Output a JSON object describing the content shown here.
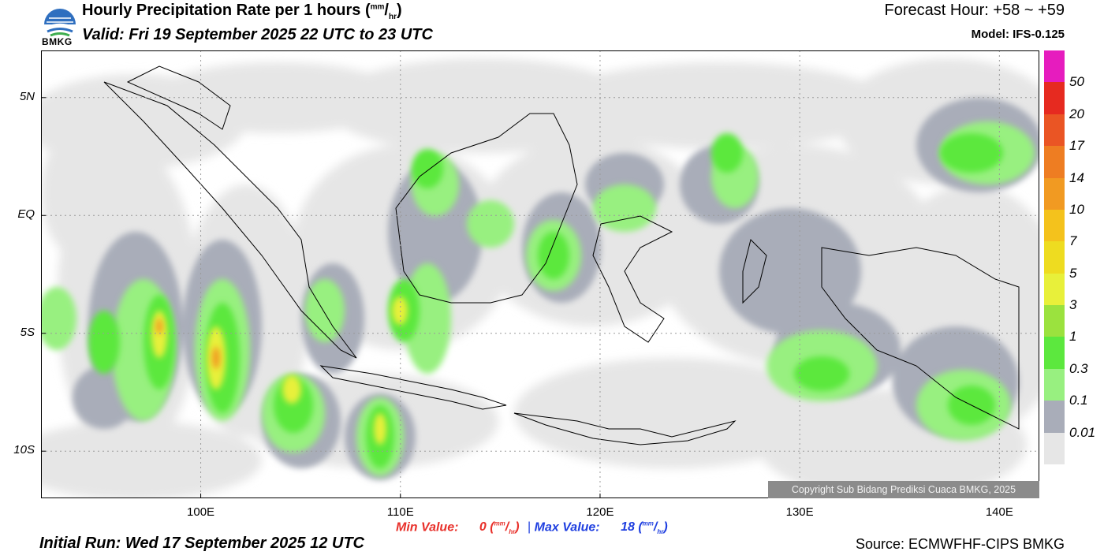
{
  "header": {
    "logo_text": "BMKG",
    "title_main": "Hourly Precipitation Rate per 1 hours (",
    "title_unit_num": "mm",
    "title_unit_den": "hr",
    "title_close": ")",
    "valid": "Valid: Fri 19 September 2025 22 UTC to 23 UTC",
    "forecast_hour": "Forecast Hour: +58 ~ +59",
    "model": "Model: IFS-0.125"
  },
  "map": {
    "lat_labels": [
      "5N",
      "EQ",
      "5S",
      "10S"
    ],
    "lat_values": [
      5,
      0,
      -5,
      -10
    ],
    "lon_labels": [
      "100E",
      "110E",
      "120E",
      "130E",
      "140E"
    ],
    "lon_values": [
      100,
      110,
      120,
      130,
      140
    ],
    "lon_range": [
      92,
      142
    ],
    "lat_range": [
      7,
      -12
    ],
    "copyright": "Copyright Sub Bidang Prediksi Cuaca BMKG, 2025"
  },
  "legend": {
    "labels": [
      "50",
      "20",
      "17",
      "14",
      "10",
      "7",
      "5",
      "3",
      "1",
      "0.3",
      "0.1",
      "0.01"
    ],
    "colors": [
      "#e61cbe",
      "#e62a20",
      "#ea5524",
      "#ee7d22",
      "#f19a22",
      "#f4c21c",
      "#eedc20",
      "#e8f03a",
      "#9be23e",
      "#5ce83e",
      "#98f080",
      "#a9adb9",
      "#e6e6e6"
    ]
  },
  "stats": {
    "min_label": "Min Value:",
    "min_value": "0",
    "max_label": "Max Value:",
    "max_value": "18",
    "unit_num": "mm",
    "unit_den": "hr",
    "separator": "|"
  },
  "footer": {
    "initial_run": "Initial Run: Wed 17 September 2025 12 UTC",
    "source": "Source: ECMWFHF-CIPS BMKG"
  }
}
